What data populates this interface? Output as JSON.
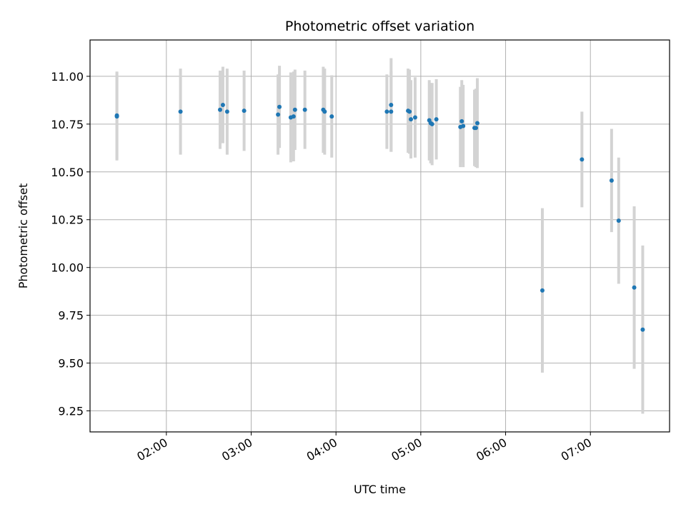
{
  "chart_data": {
    "type": "scatter",
    "title": "Photometric offset variation",
    "xlabel": "UTC time",
    "ylabel": "Photometric offset",
    "x_axis_type": "time",
    "xlim": [
      "01:06",
      "07:56"
    ],
    "ylim": [
      9.14,
      11.19
    ],
    "grid": true,
    "x_ticks": [
      "02:00",
      "03:00",
      "04:00",
      "05:00",
      "06:00",
      "07:00"
    ],
    "y_ticks": [
      "9.25",
      "9.50",
      "9.75",
      "10.00",
      "10.25",
      "10.50",
      "10.75",
      "11.00"
    ],
    "colors": {
      "point": "#1f77b4",
      "errorbar": "#d3d3d3",
      "grid": "#b0b0b0"
    },
    "points": [
      {
        "x": "01:25",
        "y": 10.795,
        "err": 0.23
      },
      {
        "x": "01:25",
        "y": 10.79,
        "err": 0.23
      },
      {
        "x": "02:10",
        "y": 10.815,
        "err": 0.225
      },
      {
        "x": "02:38",
        "y": 10.825,
        "err": 0.205
      },
      {
        "x": "02:40",
        "y": 10.85,
        "err": 0.2
      },
      {
        "x": "02:43",
        "y": 10.815,
        "err": 0.225
      },
      {
        "x": "02:55",
        "y": 10.82,
        "err": 0.21
      },
      {
        "x": "03:19",
        "y": 10.8,
        "err": 0.21
      },
      {
        "x": "03:20",
        "y": 10.84,
        "err": 0.215
      },
      {
        "x": "03:28",
        "y": 10.785,
        "err": 0.235
      },
      {
        "x": "03:30",
        "y": 10.79,
        "err": 0.235
      },
      {
        "x": "03:31",
        "y": 10.825,
        "err": 0.21
      },
      {
        "x": "03:38",
        "y": 10.825,
        "err": 0.205
      },
      {
        "x": "03:51",
        "y": 10.825,
        "err": 0.225
      },
      {
        "x": "03:52",
        "y": 10.815,
        "err": 0.225
      },
      {
        "x": "03:57",
        "y": 10.79,
        "err": 0.215
      },
      {
        "x": "04:36",
        "y": 10.815,
        "err": 0.195
      },
      {
        "x": "04:39",
        "y": 10.85,
        "err": 0.245
      },
      {
        "x": "04:39",
        "y": 10.815,
        "err": 0.21
      },
      {
        "x": "04:51",
        "y": 10.82,
        "err": 0.22
      },
      {
        "x": "04:52",
        "y": 10.815,
        "err": 0.22
      },
      {
        "x": "04:53",
        "y": 10.775,
        "err": 0.205
      },
      {
        "x": "04:56",
        "y": 10.785,
        "err": 0.21
      },
      {
        "x": "05:06",
        "y": 10.77,
        "err": 0.21
      },
      {
        "x": "05:07",
        "y": 10.755,
        "err": 0.21
      },
      {
        "x": "05:08",
        "y": 10.75,
        "err": 0.215
      },
      {
        "x": "05:11",
        "y": 10.775,
        "err": 0.21
      },
      {
        "x": "05:28",
        "y": 10.735,
        "err": 0.21
      },
      {
        "x": "05:29",
        "y": 10.765,
        "err": 0.215
      },
      {
        "x": "05:30",
        "y": 10.74,
        "err": 0.215
      },
      {
        "x": "05:38",
        "y": 10.73,
        "err": 0.2
      },
      {
        "x": "05:39",
        "y": 10.73,
        "err": 0.205
      },
      {
        "x": "05:40",
        "y": 10.755,
        "err": 0.235
      },
      {
        "x": "06:26",
        "y": 9.88,
        "err": 0.43
      },
      {
        "x": "06:54",
        "y": 10.565,
        "err": 0.25
      },
      {
        "x": "07:15",
        "y": 10.455,
        "err": 0.27
      },
      {
        "x": "07:20",
        "y": 10.245,
        "err": 0.33
      },
      {
        "x": "07:31",
        "y": 9.895,
        "err": 0.425
      },
      {
        "x": "07:37",
        "y": 9.675,
        "err": 0.44
      }
    ]
  }
}
